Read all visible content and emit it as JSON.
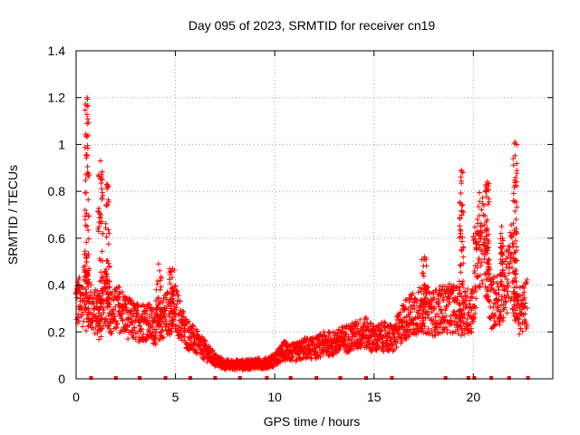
{
  "chart_data": {
    "type": "scatter",
    "title": "Day 095 of 2023, SRMTID for receiver cn19",
    "xlabel": "GPS time / hours",
    "ylabel": "SRMTID / TECUs",
    "xlim": [
      0,
      24
    ],
    "ylim": [
      0,
      1.4
    ],
    "xticks": [
      0,
      5,
      10,
      15,
      20
    ],
    "xtick_labels": [
      "0",
      "5",
      "10",
      "15",
      "20"
    ],
    "yticks": [
      0,
      0.2,
      0.4,
      0.6,
      0.8,
      1.0,
      1.2,
      1.4
    ],
    "ytick_labels": [
      "0",
      "0.2",
      "0.4",
      "0.6",
      "0.8",
      "1",
      "1.2",
      "1.4"
    ],
    "grid": true,
    "marker": "+",
    "color": "#ff0000",
    "series": [
      {
        "name": "SRMTID",
        "trend": [
          {
            "x": 0.0,
            "y": 0.33
          },
          {
            "x": 0.3,
            "y": 0.32
          },
          {
            "x": 0.5,
            "y": 0.45
          },
          {
            "x": 0.7,
            "y": 0.32
          },
          {
            "x": 0.9,
            "y": 0.28
          },
          {
            "x": 1.2,
            "y": 0.3
          },
          {
            "x": 1.5,
            "y": 0.35
          },
          {
            "x": 1.8,
            "y": 0.28
          },
          {
            "x": 2.2,
            "y": 0.3
          },
          {
            "x": 2.6,
            "y": 0.26
          },
          {
            "x": 3.0,
            "y": 0.24
          },
          {
            "x": 3.5,
            "y": 0.25
          },
          {
            "x": 4.0,
            "y": 0.22
          },
          {
            "x": 4.5,
            "y": 0.28
          },
          {
            "x": 5.0,
            "y": 0.3
          },
          {
            "x": 5.5,
            "y": 0.2
          },
          {
            "x": 6.0,
            "y": 0.16
          },
          {
            "x": 6.5,
            "y": 0.12
          },
          {
            "x": 7.0,
            "y": 0.08
          },
          {
            "x": 7.5,
            "y": 0.06
          },
          {
            "x": 8.0,
            "y": 0.06
          },
          {
            "x": 8.5,
            "y": 0.06
          },
          {
            "x": 9.0,
            "y": 0.065
          },
          {
            "x": 9.5,
            "y": 0.065
          },
          {
            "x": 10.0,
            "y": 0.08
          },
          {
            "x": 10.5,
            "y": 0.12
          },
          {
            "x": 11.0,
            "y": 0.11
          },
          {
            "x": 11.5,
            "y": 0.13
          },
          {
            "x": 12.0,
            "y": 0.13
          },
          {
            "x": 12.5,
            "y": 0.15
          },
          {
            "x": 13.0,
            "y": 0.15
          },
          {
            "x": 13.5,
            "y": 0.17
          },
          {
            "x": 14.0,
            "y": 0.18
          },
          {
            "x": 14.5,
            "y": 0.2
          },
          {
            "x": 15.0,
            "y": 0.17
          },
          {
            "x": 15.5,
            "y": 0.18
          },
          {
            "x": 16.0,
            "y": 0.17
          },
          {
            "x": 16.5,
            "y": 0.25
          },
          {
            "x": 17.0,
            "y": 0.28
          },
          {
            "x": 17.5,
            "y": 0.3
          },
          {
            "x": 18.0,
            "y": 0.28
          },
          {
            "x": 18.5,
            "y": 0.3
          },
          {
            "x": 19.0,
            "y": 0.3
          },
          {
            "x": 19.5,
            "y": 0.28
          },
          {
            "x": 20.0,
            "y": 0.3
          },
          {
            "x": 20.3,
            "y": 0.6
          },
          {
            "x": 20.6,
            "y": 0.55
          },
          {
            "x": 20.9,
            "y": 0.32
          },
          {
            "x": 21.3,
            "y": 0.35
          },
          {
            "x": 21.6,
            "y": 0.38
          },
          {
            "x": 21.9,
            "y": 0.5
          },
          {
            "x": 22.2,
            "y": 0.28
          },
          {
            "x": 22.5,
            "y": 0.3
          },
          {
            "x": 22.7,
            "y": 0.33
          }
        ],
        "bursts": [
          {
            "x0": 0.45,
            "x1": 0.65,
            "lo": 0.2,
            "hi": 1.2
          },
          {
            "x0": 1.1,
            "x1": 1.35,
            "lo": 0.15,
            "hi": 0.93
          },
          {
            "x0": 1.45,
            "x1": 1.7,
            "lo": 0.25,
            "hi": 0.83
          },
          {
            "x0": 4.0,
            "x1": 4.3,
            "lo": 0.2,
            "hi": 0.49
          },
          {
            "x0": 4.7,
            "x1": 5.0,
            "lo": 0.2,
            "hi": 0.47
          },
          {
            "x0": 17.4,
            "x1": 17.7,
            "lo": 0.25,
            "hi": 0.52
          },
          {
            "x0": 19.3,
            "x1": 19.5,
            "lo": 0.25,
            "hi": 0.89
          },
          {
            "x0": 20.0,
            "x1": 20.4,
            "lo": 0.55,
            "hi": 0.68
          },
          {
            "x0": 20.6,
            "x1": 20.8,
            "lo": 0.3,
            "hi": 0.84
          },
          {
            "x0": 21.35,
            "x1": 21.5,
            "lo": 0.4,
            "hi": 0.65
          },
          {
            "x0": 22.0,
            "x1": 22.2,
            "lo": 0.3,
            "hi": 1.01
          }
        ],
        "baseline_markers_x": [
          0.75,
          2.0,
          3.2,
          4.5,
          5.75,
          7.0,
          8.25,
          9.6,
          10.8,
          12.1,
          13.3,
          14.6,
          15.9,
          18.6,
          19.75,
          20.05,
          20.9,
          21.8,
          22.75
        ]
      }
    ]
  }
}
